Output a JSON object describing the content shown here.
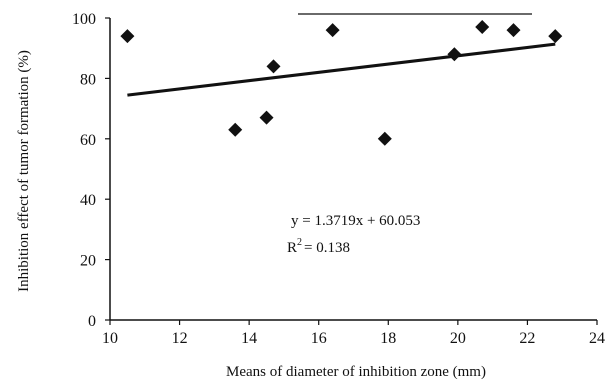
{
  "chart_data": {
    "type": "scatter",
    "title": "",
    "xlabel": "Means of diameter of inhibition zone (mm)",
    "ylabel": "Inhibition effect of tumor formation (%)",
    "xlim": [
      10,
      24
    ],
    "ylim": [
      0,
      100
    ],
    "xticks": [
      "10",
      "12",
      "14",
      "16",
      "18",
      "20",
      "22",
      "24"
    ],
    "yticks": [
      "0",
      "20",
      "40",
      "60",
      "80",
      "100"
    ],
    "grid": false,
    "legend": "none",
    "marker": "diamond",
    "colors": {
      "marker": "#111111",
      "trendline": "#111111",
      "axis": "#111111"
    },
    "points": [
      {
        "x": 10.5,
        "y": 94
      },
      {
        "x": 13.6,
        "y": 63
      },
      {
        "x": 14.5,
        "y": 67
      },
      {
        "x": 14.7,
        "y": 84
      },
      {
        "x": 16.4,
        "y": 96
      },
      {
        "x": 17.9,
        "y": 60
      },
      {
        "x": 19.9,
        "y": 88
      },
      {
        "x": 20.7,
        "y": 97
      },
      {
        "x": 21.6,
        "y": 96
      },
      {
        "x": 22.8,
        "y": 94
      }
    ],
    "trendline": {
      "slope": 1.3719,
      "intercept": 60.053,
      "x_range": [
        10.5,
        22.8
      ]
    },
    "equation_text": "y = 1.3719x + 60.053",
    "r2": {
      "prefix": "R",
      "sup": "2",
      "value": "= 0.138"
    }
  }
}
